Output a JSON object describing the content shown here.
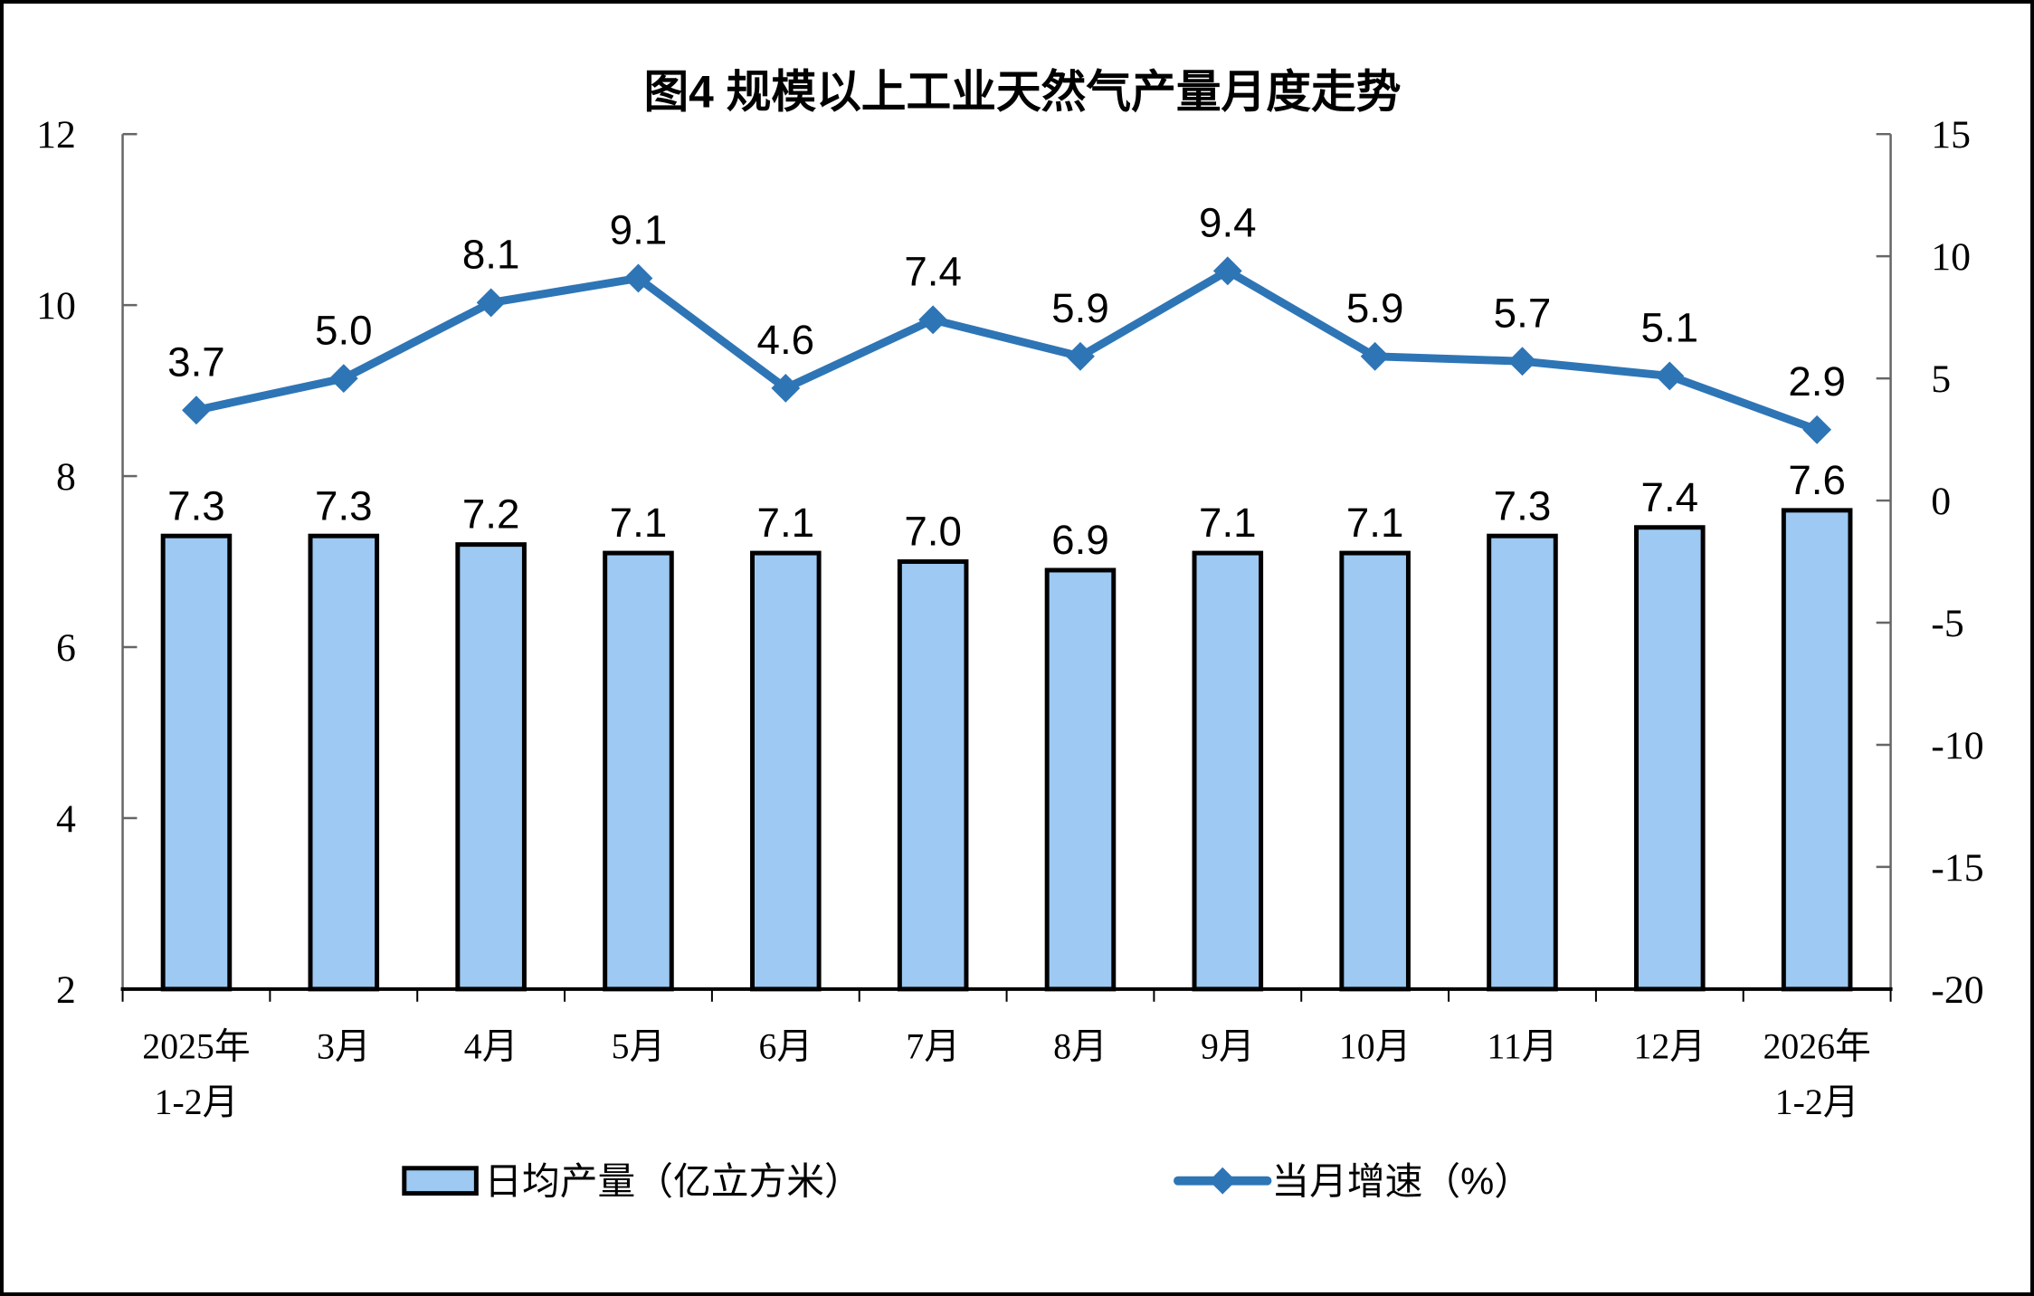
{
  "chart_data": {
    "type": "combo",
    "title": "图4 规模以上工业天然气产量月度走势",
    "categories": [
      [
        "2025年",
        "1-2月"
      ],
      [
        "3月"
      ],
      [
        "4月"
      ],
      [
        "5月"
      ],
      [
        "6月"
      ],
      [
        "7月"
      ],
      [
        "8月"
      ],
      [
        "9月"
      ],
      [
        "10月"
      ],
      [
        "11月"
      ],
      [
        "12月"
      ],
      [
        "2026年",
        "1-2月"
      ]
    ],
    "series": [
      {
        "name": "日均产量（亿立方米）",
        "type": "bar",
        "axis": "left",
        "values": [
          7.3,
          7.3,
          7.2,
          7.1,
          7.1,
          7.0,
          6.9,
          7.1,
          7.1,
          7.3,
          7.4,
          7.6
        ],
        "fill": "#9DC9F2",
        "stroke": "#000000"
      },
      {
        "name": "当月增速（%）",
        "type": "line",
        "axis": "right",
        "values": [
          3.7,
          5.0,
          8.1,
          9.1,
          4.6,
          7.4,
          5.9,
          9.4,
          5.9,
          5.7,
          5.1,
          2.9
        ],
        "color": "#2E75B6",
        "marker": "diamond"
      }
    ],
    "left_axis": {
      "min": 2,
      "max": 12,
      "ticks": [
        12,
        10,
        8,
        6,
        4,
        2
      ]
    },
    "right_axis": {
      "min": -20,
      "max": 15,
      "ticks": [
        15,
        10,
        5,
        0,
        -5,
        -10,
        -15,
        -20
      ]
    },
    "grid": false,
    "data_labels": true,
    "label_decimals": 1,
    "legend_position": "bottom",
    "colors": {
      "bar_fill": "#9DC9F2",
      "bar_border": "#000000",
      "line": "#2E75B6",
      "axis_side": "#666666",
      "axis_bottom": "#000000",
      "text": "#000000",
      "background": "#FFFFFF"
    }
  }
}
